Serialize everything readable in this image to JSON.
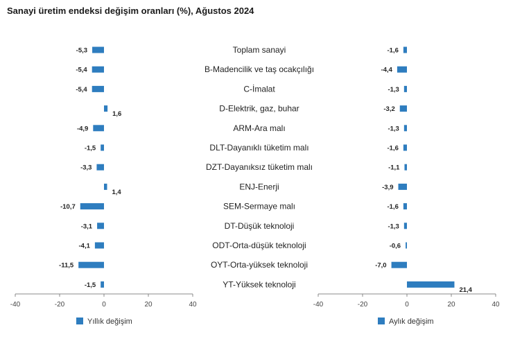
{
  "chart_data": {
    "type": "bar",
    "orientation": "horizontal",
    "title": "Sanayi üretim endeksi değişim oranları (%), Ağustos 2024",
    "categories": [
      "Toplam sanayi",
      "B-Madencilik ve taş ocakçılığı",
      "C-İmalat",
      "D-Elektrik, gaz, buhar",
      "ARM-Ara malı",
      "DLT-Dayanıklı tüketim malı",
      "DZT-Dayanıksız tüketim malı",
      "ENJ-Enerji",
      "SEM-Sermaye malı",
      "DT-Düşük teknoloji",
      "ODT-Orta-düşük teknoloji",
      "OYT-Orta-yüksek teknoloji",
      "YT-Yüksek teknoloji"
    ],
    "series": [
      {
        "name": "Yıllık değişim",
        "values": [
          -5.3,
          -5.4,
          -5.4,
          1.6,
          -4.9,
          -1.5,
          -3.3,
          1.4,
          -10.7,
          -3.1,
          -4.1,
          -11.5,
          -1.5
        ],
        "labels": [
          "-5,3",
          "-5,4",
          "-5,4",
          "1,6",
          "-4,9",
          "-1,5",
          "-3,3",
          "1,4",
          "-10,7",
          "-3,1",
          "-4,1",
          "-11,5",
          "-1,5"
        ]
      },
      {
        "name": "Aylık değişim",
        "values": [
          -1.6,
          -4.4,
          -1.3,
          -3.2,
          -1.3,
          -1.6,
          -1.1,
          -3.9,
          -1.6,
          -1.3,
          -0.6,
          -7.0,
          21.4
        ],
        "labels": [
          "-1,6",
          "-4,4",
          "-1,3",
          "-3,2",
          "-1,3",
          "-1,6",
          "-1,1",
          "-3,9",
          "-1,6",
          "-1,3",
          "-0,6",
          "-7,0",
          "21,4"
        ]
      }
    ],
    "xlim": [
      -40,
      40
    ],
    "ticks": [
      -40,
      -20,
      0,
      20,
      40
    ],
    "tick_labels": [
      "-40",
      "-20",
      "0",
      "20",
      "40"
    ],
    "bar_color": "#2e7dbf",
    "axis_color": "#888888",
    "legend_position": "bottom"
  }
}
